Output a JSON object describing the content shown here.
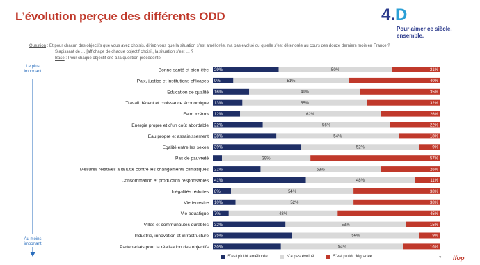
{
  "header": {
    "title": "L’évolution perçue des différents ODD"
  },
  "logo": {
    "mark_main": "4.",
    "mark_letter": "D",
    "tagline_1": "Pour aimer ce siècle,",
    "tagline_2": "ensemble."
  },
  "question": {
    "label": "Question",
    "text": " : Et pour chacun des objectifs que vous avez choisis, diriez-vous que la situation s’est améliorée, n’a pas évolué ou qu’elle s’est détériorée au cours des douze derniers mois en France ?",
    "text_2": "S’agissant de … [affichage de chaque objectif choisi], la situation s’est … ?",
    "base_label": "Base",
    "base_text": " : Pour chaque objectif cité à la question précédente"
  },
  "side": {
    "top_1": "Le plus",
    "top_2": "important",
    "bottom_1": "Au moins",
    "bottom_2": "important"
  },
  "chart_data": {
    "type": "bar",
    "stacked": true,
    "orientation": "horizontal",
    "xlim": [
      0,
      100
    ],
    "colors": {
      "improved": "#1f2f66",
      "unchanged": "#d9d9d9",
      "degraded": "#c0392b"
    },
    "categories": [
      "Bonne santé et bien-être",
      "Paix, justice et institutions efficaces",
      "Education de qualité",
      "Travail décent et croissance économique",
      "Faim «zéro»",
      "Energie propre et d’un coût abordable",
      "Eau propre et assainissement",
      "Egalité entre les sexes",
      "Pas de pauvreté",
      "Mesures relatives à la lutte contre les changements climatiques",
      "Consommation et production responsables",
      "Inégalités réduites",
      "Vie terrestre",
      "Vie aquatique",
      "Villes et communautés durables",
      "Industrie, innovation et infrastructure",
      "Partenariats pour la réalisation des objectifs"
    ],
    "series": [
      {
        "name": "S’est plutôt améliorée",
        "values": [
          29,
          9,
          16,
          13,
          12,
          22,
          28,
          39,
          4,
          21,
          41,
          8,
          10,
          7,
          32,
          35,
          30
        ]
      },
      {
        "name": "N’a pas évolué",
        "values": [
          50,
          51,
          49,
          55,
          62,
          56,
          54,
          52,
          39,
          53,
          48,
          54,
          52,
          48,
          53,
          56,
          54
        ]
      },
      {
        "name": "S’est plutôt dégradée",
        "values": [
          21,
          40,
          35,
          32,
          26,
          22,
          18,
          9,
          57,
          26,
          11,
          38,
          38,
          45,
          15,
          9,
          16
        ]
      }
    ]
  },
  "footer": {
    "page": "7",
    "brand": "ifop"
  }
}
